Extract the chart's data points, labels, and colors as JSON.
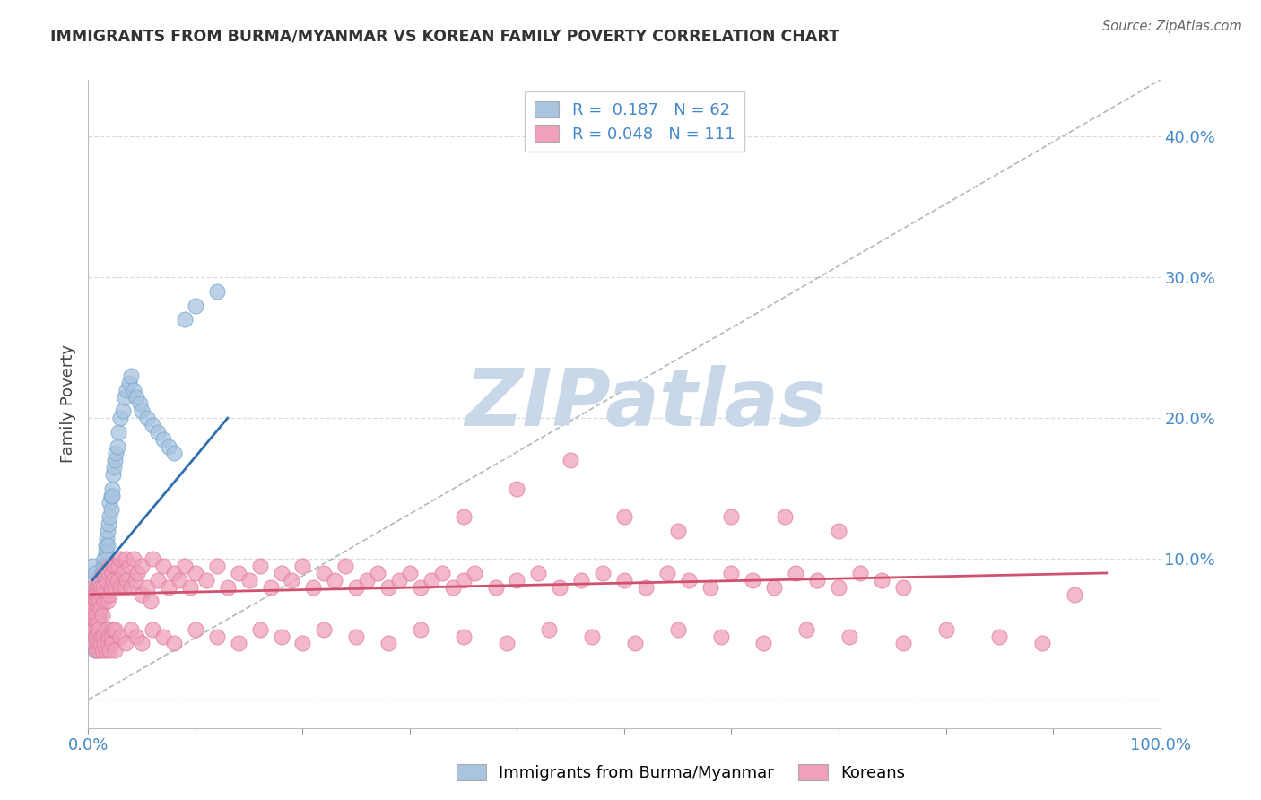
{
  "title": "IMMIGRANTS FROM BURMA/MYANMAR VS KOREAN FAMILY POVERTY CORRELATION CHART",
  "source": "Source: ZipAtlas.com",
  "ylabel": "Family Poverty",
  "xlim": [
    0,
    1.0
  ],
  "ylim": [
    -0.02,
    0.44
  ],
  "xticks": [
    0.0,
    0.1,
    0.2,
    0.3,
    0.4,
    0.5,
    0.6,
    0.7,
    0.8,
    0.9,
    1.0
  ],
  "yticks": [
    0.0,
    0.1,
    0.2,
    0.3,
    0.4
  ],
  "blue_R": "0.187",
  "blue_N": "62",
  "pink_R": "0.048",
  "pink_N": "111",
  "blue_color": "#a8c4e0",
  "blue_edge_color": "#7aaad0",
  "pink_color": "#f0a0b8",
  "pink_edge_color": "#e080a0",
  "blue_line_color": "#3070b0",
  "pink_line_color": "#d05070",
  "ref_line_color": "#b0b8c0",
  "tick_color": "#4488cc",
  "title_color": "#333333",
  "source_color": "#666666",
  "ylabel_color": "#444444",
  "grid_color": "#d8dde0",
  "legend_label_blue": "Immigrants from Burma/Myanmar",
  "legend_label_pink": "Koreans",
  "blue_scatter_x": [
    0.004,
    0.005,
    0.006,
    0.007,
    0.008,
    0.008,
    0.008,
    0.009,
    0.009,
    0.01,
    0.01,
    0.01,
    0.01,
    0.011,
    0.011,
    0.012,
    0.012,
    0.013,
    0.013,
    0.014,
    0.014,
    0.015,
    0.015,
    0.016,
    0.016,
    0.016,
    0.017,
    0.017,
    0.018,
    0.018,
    0.019,
    0.02,
    0.02,
    0.021,
    0.021,
    0.022,
    0.022,
    0.023,
    0.024,
    0.025,
    0.026,
    0.027,
    0.028,
    0.03,
    0.032,
    0.034,
    0.036,
    0.038,
    0.04,
    0.042,
    0.045,
    0.048,
    0.05,
    0.055,
    0.06,
    0.065,
    0.07,
    0.075,
    0.08,
    0.09,
    0.1,
    0.12
  ],
  "blue_scatter_y": [
    0.095,
    0.085,
    0.09,
    0.08,
    0.075,
    0.08,
    0.075,
    0.07,
    0.065,
    0.075,
    0.07,
    0.065,
    0.06,
    0.08,
    0.07,
    0.085,
    0.075,
    0.09,
    0.08,
    0.095,
    0.085,
    0.1,
    0.09,
    0.11,
    0.105,
    0.095,
    0.115,
    0.1,
    0.12,
    0.11,
    0.125,
    0.14,
    0.13,
    0.145,
    0.135,
    0.15,
    0.145,
    0.16,
    0.165,
    0.17,
    0.175,
    0.18,
    0.19,
    0.2,
    0.205,
    0.215,
    0.22,
    0.225,
    0.23,
    0.22,
    0.215,
    0.21,
    0.205,
    0.2,
    0.195,
    0.19,
    0.185,
    0.18,
    0.175,
    0.27,
    0.28,
    0.29
  ],
  "blue_scatter_extra_x": [
    0.005,
    0.005,
    0.006,
    0.007,
    0.008,
    0.009,
    0.01,
    0.01,
    0.005,
    0.006,
    0.007,
    0.008
  ],
  "blue_scatter_extra_y": [
    0.05,
    0.045,
    0.055,
    0.06,
    0.05,
    0.055,
    0.05,
    0.06,
    0.04,
    0.035,
    0.045,
    0.04
  ],
  "pink_scatter_x": [
    0.002,
    0.003,
    0.003,
    0.004,
    0.004,
    0.005,
    0.005,
    0.005,
    0.006,
    0.006,
    0.007,
    0.007,
    0.008,
    0.008,
    0.009,
    0.009,
    0.01,
    0.01,
    0.01,
    0.011,
    0.011,
    0.012,
    0.013,
    0.014,
    0.015,
    0.015,
    0.016,
    0.017,
    0.018,
    0.019,
    0.02,
    0.02,
    0.021,
    0.022,
    0.023,
    0.024,
    0.025,
    0.026,
    0.027,
    0.028,
    0.03,
    0.03,
    0.032,
    0.034,
    0.035,
    0.036,
    0.038,
    0.04,
    0.042,
    0.044,
    0.046,
    0.05,
    0.05,
    0.055,
    0.058,
    0.06,
    0.065,
    0.07,
    0.075,
    0.08,
    0.085,
    0.09,
    0.095,
    0.1,
    0.11,
    0.12,
    0.13,
    0.14,
    0.15,
    0.16,
    0.17,
    0.18,
    0.19,
    0.2,
    0.21,
    0.22,
    0.23,
    0.24,
    0.25,
    0.26,
    0.27,
    0.28,
    0.29,
    0.3,
    0.31,
    0.32,
    0.33,
    0.34,
    0.35,
    0.36,
    0.38,
    0.4,
    0.42,
    0.44,
    0.46,
    0.48,
    0.5,
    0.52,
    0.54,
    0.56,
    0.58,
    0.6,
    0.62,
    0.64,
    0.66,
    0.68,
    0.7,
    0.72,
    0.74,
    0.76,
    0.92
  ],
  "pink_scatter_y": [
    0.065,
    0.055,
    0.07,
    0.06,
    0.075,
    0.05,
    0.065,
    0.08,
    0.06,
    0.075,
    0.055,
    0.07,
    0.065,
    0.08,
    0.06,
    0.075,
    0.055,
    0.07,
    0.085,
    0.065,
    0.08,
    0.075,
    0.06,
    0.08,
    0.07,
    0.09,
    0.075,
    0.085,
    0.07,
    0.09,
    0.075,
    0.095,
    0.08,
    0.09,
    0.085,
    0.095,
    0.08,
    0.095,
    0.085,
    0.095,
    0.08,
    0.1,
    0.09,
    0.08,
    0.1,
    0.085,
    0.095,
    0.08,
    0.1,
    0.085,
    0.09,
    0.075,
    0.095,
    0.08,
    0.07,
    0.1,
    0.085,
    0.095,
    0.08,
    0.09,
    0.085,
    0.095,
    0.08,
    0.09,
    0.085,
    0.095,
    0.08,
    0.09,
    0.085,
    0.095,
    0.08,
    0.09,
    0.085,
    0.095,
    0.08,
    0.09,
    0.085,
    0.095,
    0.08,
    0.085,
    0.09,
    0.08,
    0.085,
    0.09,
    0.08,
    0.085,
    0.09,
    0.08,
    0.085,
    0.09,
    0.08,
    0.085,
    0.09,
    0.08,
    0.085,
    0.09,
    0.085,
    0.08,
    0.09,
    0.085,
    0.08,
    0.09,
    0.085,
    0.08,
    0.09,
    0.085,
    0.08,
    0.09,
    0.085,
    0.08,
    0.075
  ],
  "pink_scatter_extra_x": [
    0.005,
    0.006,
    0.007,
    0.008,
    0.009,
    0.01,
    0.01,
    0.011,
    0.012,
    0.013,
    0.014,
    0.015,
    0.016,
    0.017,
    0.018,
    0.019,
    0.02,
    0.021,
    0.022,
    0.023,
    0.025,
    0.025,
    0.03,
    0.035,
    0.04,
    0.045,
    0.05,
    0.06,
    0.07,
    0.08,
    0.1,
    0.12,
    0.14,
    0.16,
    0.18,
    0.2,
    0.22,
    0.25,
    0.28,
    0.31,
    0.35,
    0.39,
    0.43,
    0.47,
    0.51,
    0.55,
    0.59,
    0.63,
    0.67,
    0.71,
    0.76,
    0.8,
    0.85,
    0.89
  ],
  "pink_scatter_extra_y": [
    0.04,
    0.045,
    0.035,
    0.045,
    0.04,
    0.035,
    0.05,
    0.04,
    0.045,
    0.035,
    0.045,
    0.04,
    0.035,
    0.05,
    0.04,
    0.045,
    0.035,
    0.045,
    0.04,
    0.05,
    0.035,
    0.05,
    0.045,
    0.04,
    0.05,
    0.045,
    0.04,
    0.05,
    0.045,
    0.04,
    0.05,
    0.045,
    0.04,
    0.05,
    0.045,
    0.04,
    0.05,
    0.045,
    0.04,
    0.05,
    0.045,
    0.04,
    0.05,
    0.045,
    0.04,
    0.05,
    0.045,
    0.04,
    0.05,
    0.045,
    0.04,
    0.05,
    0.045,
    0.04
  ],
  "pink_high_x": [
    0.35,
    0.4,
    0.45,
    0.5,
    0.55,
    0.6,
    0.65,
    0.7
  ],
  "pink_high_y": [
    0.13,
    0.15,
    0.17,
    0.13,
    0.12,
    0.13,
    0.13,
    0.12
  ],
  "blue_trend_x": [
    0.004,
    0.13
  ],
  "blue_trend_y": [
    0.085,
    0.2
  ],
  "pink_trend_x": [
    0.002,
    0.95
  ],
  "pink_trend_y": [
    0.075,
    0.09
  ],
  "ref_line_x": [
    0.0,
    1.0
  ],
  "ref_line_y": [
    0.0,
    0.44
  ],
  "watermark_text": "ZIPatlas",
  "watermark_color": "#c8d8e8"
}
